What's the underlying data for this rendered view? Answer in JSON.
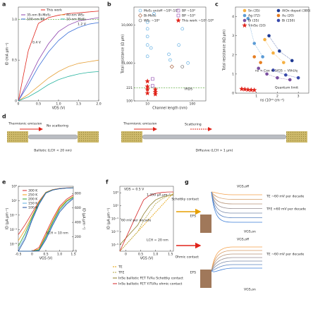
{
  "chart_data": [
    {
      "label": "a",
      "type": "line",
      "xlabel": "VDS (V)",
      "ylabel": "ID (mA μm⁻¹)",
      "x": [
        0,
        0.25,
        0.5,
        0.75,
        1,
        1.25,
        1.5,
        1.75,
        2
      ],
      "xlim": [
        0,
        2
      ],
      "xticks": [
        0,
        0.5,
        {
          "value": 1,
          "label": "1.0"
        },
        1.5,
        {
          "value": 2,
          "label": "2.0"
        }
      ],
      "ylim": [
        0,
        1.15
      ],
      "yticks": [
        0,
        0.5,
        {
          "value": 1,
          "label": "1.0"
        }
      ],
      "reference_line": {
        "value": 1,
        "color": "#6ab04c"
      },
      "series": [
        {
          "name": "This work",
          "color": "#e0241b",
          "values": [
            0,
            0.62,
            0.95,
            1.02,
            1.05,
            1.07,
            1.08,
            1.09,
            1.1
          ]
        },
        {
          "name": "35-nm Bi-MoS₂",
          "color": "#8e44ad",
          "values": [
            0,
            0.25,
            0.5,
            0.7,
            0.85,
            0.93,
            0.98,
            1,
            1.02
          ]
        },
        {
          "name": "40-nm WS₂",
          "color": "#e6a23c",
          "values": [
            0,
            0.08,
            0.18,
            0.28,
            0.36,
            0.42,
            0.46,
            0.48,
            0.5
          ]
        },
        {
          "name": "100-nm BP",
          "color": "#3a6fd8",
          "values": [
            0,
            0.2,
            0.42,
            0.6,
            0.74,
            0.84,
            0.9,
            0.94,
            0.96
          ]
        },
        {
          "name": "10-nm MoS₂",
          "color": "#2bb5a0",
          "values": [
            0,
            0.05,
            0.12,
            0.2,
            0.26,
            0.3,
            0.33,
            0.35,
            0.36
          ]
        }
      ],
      "annotations": [
        "0.4 V",
        "1.2 V"
      ]
    },
    {
      "label": "b",
      "type": "scatter",
      "xlabel": "Channel length (nm)",
      "ylabel": "Total resistance (Ω μm)",
      "xscale": "log",
      "yscale": "log",
      "xlim": [
        5,
        200
      ],
      "xticks": [
        10,
        100
      ],
      "ylim": [
        100,
        30000
      ],
      "yticks": [
        100,
        221,
        {
          "value": 1000,
          "label": "1,000"
        },
        {
          "value": 10000,
          "label": "10,000"
        }
      ],
      "reference_line": {
        "value": 221,
        "label": "IRDS",
        "color": "#6ab04c"
      },
      "series": [
        {
          "name": "MoS₂ on/off ~10⁴–10⁷",
          "color": "#4aa3df",
          "marker": "circle",
          "filled": false,
          "x": [
            10,
            10,
            10,
            10,
            10,
            12,
            14,
            30,
            32,
            50,
            60,
            80
          ],
          "values": [
            12000,
            8000,
            5000,
            3000,
            1500,
            2500,
            20000,
            1700,
            1200,
            3000,
            8000,
            1000
          ]
        },
        {
          "name": "Bi-MoS₂",
          "color": "#a0522d",
          "marker": "diamond",
          "filled": false,
          "x": [
            35
          ],
          "values": [
            800
          ]
        },
        {
          "name": "WS₂ ~10⁴",
          "color": "#555555",
          "marker": "circle",
          "filled": false,
          "x": [
            60
          ],
          "values": [
            800
          ]
        },
        {
          "name": "BP ~10²",
          "color": "#8e44ad",
          "marker": "square",
          "filled": false,
          "x": [
            13
          ],
          "values": [
            380
          ]
        },
        {
          "name": "BP ~10³",
          "color": "#8e44ad",
          "marker": "square",
          "filled": false,
          "x": [
            13
          ],
          "values": [
            250
          ]
        },
        {
          "name": "This work ~10⁷–10⁸",
          "color": "#e0241b",
          "marker": "star",
          "filled": true,
          "x": [
            10,
            10,
            10,
            10,
            15,
            15,
            15
          ],
          "values": [
            330,
            240,
            200,
            160,
            200,
            170,
            150
          ]
        }
      ]
    },
    {
      "label": "c",
      "type": "scatter",
      "xlabel": "ns (10¹³ cm⁻²)",
      "ylabel": "Total resistance (kΩ μm)",
      "xlim": [
        0,
        3.5
      ],
      "xticks": [
        1,
        2,
        3
      ],
      "ylim": [
        0,
        4.5
      ],
      "yticks": [
        0,
        1,
        2,
        3,
        4
      ],
      "series": [
        {
          "name": "Sn (35)",
          "color": "#f5b041",
          "marker": "circle",
          "filled": true,
          "line_style": "dotted",
          "x": [
            1.4,
            1.8,
            2.3
          ],
          "values": [
            2.8,
            2.1,
            1.6
          ]
        },
        {
          "name": "Ag (72)",
          "color": "#5b9bd5",
          "marker": "circle",
          "filled": true,
          "line_style": "dotted",
          "x": [
            0.6,
            0.9,
            1.3
          ],
          "values": [
            3.9,
            2.6,
            1.9
          ]
        },
        {
          "name": "Bi (35)",
          "color": "#7a4fa0",
          "marker": "circle",
          "filled": true,
          "line_style": "dotted",
          "x": [
            1.1,
            1.5,
            2,
            2.6
          ],
          "values": [
            1.3,
            1,
            0.8,
            0.7
          ]
        },
        {
          "name": "Y-InSe (10)",
          "color": "#e0241b",
          "marker": "star",
          "filled": true,
          "x": [
            0.3,
            0.45,
            0.6,
            0.75,
            0.9
          ],
          "values": [
            0.22,
            0.2,
            0.18,
            0.17,
            0.16
          ]
        },
        {
          "name": "AlOx doped (380)",
          "color": "#1f3a93",
          "marker": "circle",
          "filled": true,
          "line_style": "dotted",
          "x": [
            1.6,
            2.1,
            2.7
          ],
          "values": [
            3,
            2.2,
            1.7
          ]
        },
        {
          "name": "Au (20)",
          "color": "#e67e22",
          "marker": "circle",
          "filled": true,
          "x": [
            0.9,
            1.2
          ],
          "values": [
            1.9,
            1.6
          ]
        },
        {
          "name": "Bi (150)",
          "color": "#3949ab",
          "marker": "circle",
          "filled": true,
          "line_style": "dotted",
          "x": [
            1.8,
            2.4,
            3
          ],
          "values": [
            1.2,
            0.95,
            0.8
          ]
        }
      ],
      "annotations": [
        "ns = Cox × (VGS − Vth)/q",
        "Quantum limit"
      ]
    },
    {
      "label": "e",
      "type": "line",
      "xlabel": "VGS (V)",
      "ylabel": "ID (μA μm⁻¹)",
      "y2label": "ID (μA μm⁻¹)",
      "x": [
        -0.5,
        -0.25,
        0,
        0.25,
        0.5,
        0.75,
        1,
        1.25,
        1.5
      ],
      "xlim": [
        -0.5,
        1.5
      ],
      "xticks": [
        -0.5,
        0,
        0.5,
        {
          "value": 1,
          "label": "1.0"
        },
        1.5
      ],
      "yscale": "log",
      "ylim": [
        1e-06,
        1000
      ],
      "yticks": [
        {
          "value": 1e-05,
          "label": "10⁻⁵"
        },
        {
          "value": 0.001,
          "label": "10⁻³"
        },
        {
          "value": 0.1,
          "label": "10⁻¹"
        },
        {
          "value": 10,
          "label": "10¹"
        },
        {
          "value": 1000,
          "label": "10³"
        }
      ],
      "y2lim": [
        0,
        900
      ],
      "y2ticks": [
        0,
        200,
        400,
        600,
        800
      ],
      "series": [
        {
          "name": "300 K",
          "color": "#d62728",
          "values": [
            0.0002,
            0.005,
            0.2,
            8,
            150,
            350,
            500,
            600,
            650
          ]
        },
        {
          "name": "250 K",
          "color": "#f39c12",
          "values": [
            3e-05,
            0.001,
            0.08,
            6,
            140,
            330,
            480,
            580,
            630
          ]
        },
        {
          "name": "200 K",
          "color": "#2ca02c",
          "values": [
            5e-06,
            0.0003,
            0.05,
            5,
            130,
            320,
            470,
            570,
            620
          ]
        },
        {
          "name": "150 K",
          "color": "#5dade2",
          "values": [
            2e-06,
            0.0001,
            0.03,
            4,
            120,
            310,
            460,
            560,
            610
          ]
        },
        {
          "name": "100 K",
          "color": "#1f4e9c",
          "values": [
            1e-06,
            5e-05,
            0.02,
            3,
            110,
            300,
            450,
            550,
            600
          ]
        }
      ],
      "series_linear": [
        {
          "color": "#d62728",
          "axis": "y2",
          "values": [
            0,
            0,
            0,
            50,
            250,
            450,
            620,
            720,
            780
          ]
        },
        {
          "color": "#f39c12",
          "axis": "y2",
          "values": [
            0,
            0,
            0,
            30,
            220,
            420,
            600,
            700,
            760
          ]
        },
        {
          "color": "#2ca02c",
          "axis": "y2",
          "values": [
            0,
            0,
            0,
            20,
            200,
            400,
            580,
            690,
            750
          ]
        },
        {
          "color": "#5dade2",
          "axis": "y2",
          "values": [
            0,
            0,
            0,
            10,
            180,
            380,
            560,
            670,
            740
          ]
        },
        {
          "color": "#1f4e9c",
          "axis": "y2",
          "values": [
            0,
            0,
            0,
            5,
            160,
            360,
            540,
            650,
            730
          ]
        }
      ],
      "annotations": [
        "LCH = 10 nm"
      ]
    },
    {
      "label": "f",
      "type": "line",
      "xlabel": "VGS (V)",
      "ylabel": "ID (μA μm⁻¹)",
      "x": [
        -0.2,
        0,
        0.2,
        0.4,
        0.6,
        0.8,
        1,
        1.2,
        1.4,
        1.6
      ],
      "xlim": [
        -0.2,
        1.6
      ],
      "xticks": [
        0,
        0.5,
        {
          "value": 1,
          "label": "1.0"
        },
        1.5
      ],
      "yscale": "log",
      "ylim": [
        1e-06,
        10000
      ],
      "yticks": [
        {
          "value": 1e-05,
          "label": "10⁻⁵"
        },
        {
          "value": 0.001,
          "label": "10⁻³"
        },
        {
          "value": 0.1,
          "label": "10⁻¹"
        },
        {
          "value": 10,
          "label": "10¹"
        },
        {
          "value": 1000,
          "label": "10³"
        }
      ],
      "series": [
        {
          "name": "TE",
          "color": "#e69f00",
          "dash": true,
          "values": [
            1e-06,
            1e-05,
            0.0001,
            0.001,
            0.01,
            0.1,
            1,
            10,
            100,
            1000
          ]
        },
        {
          "name": "TFE",
          "color": "#b5a642",
          "dash": true,
          "values": [
            1e-06,
            1e-05,
            0.0001,
            0.001,
            0.05,
            1,
            20,
            100,
            300,
            600
          ]
        },
        {
          "name": "InSe ballistic FET Ti/Au Schottky contact",
          "color": "#8b7d2a",
          "values": [
            1e-05,
            0.0001,
            0.001,
            0.01,
            0.5,
            10,
            80,
            200,
            350,
            450
          ]
        },
        {
          "name": "InSe ballistic FET Y/Ti/Au ohmic contact",
          "color": "#d62728",
          "values": [
            1e-06,
            0.0001,
            0.01,
            1,
            80,
            400,
            800,
            1100,
            1300,
            1350
          ]
        }
      ],
      "annotations": [
        "VDS = 0.5 V",
        "1,350 μA μm⁻¹",
        "LCH = 20 nm",
        "60 mV per decade"
      ]
    }
  ],
  "diagram_d": {
    "label": "d",
    "ballistic": {
      "emission": "Thermionic emission",
      "note": "No scattering",
      "caption": "Ballistic (LCH < 20 nm)"
    },
    "diffusive": {
      "emission": "Thermionic emission",
      "note": "Scattering",
      "caption": "Diffusive (LCH > 1 μm)"
    }
  },
  "diagram_g": {
    "label": "g",
    "schottky": {
      "vgs_off": "VGS,off",
      "contact": "Schottky contact",
      "efs": "EFS",
      "te": "TE ~60 mV per decade",
      "tfe": "TFE >60 mV per decade",
      "vgs_on": "VGS,on"
    },
    "ohmic": {
      "vgs_off": "VGS,off",
      "contact": "Ohmic contact",
      "te": "TE ~60 mV per decade",
      "efs": "EFS",
      "vgs_on": "VGS,on"
    }
  }
}
